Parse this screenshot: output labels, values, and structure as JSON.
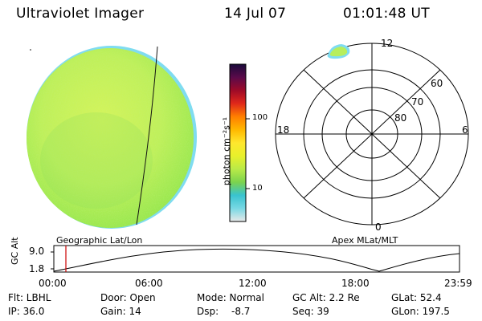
{
  "header": {
    "instrument": "Ultraviolet Imager",
    "date": "14 Jul 07",
    "time": "01:01:48 UT"
  },
  "colors": {
    "globe_green": "#9be84f",
    "globe_light": "#bff05a",
    "globe_yellow": "#d4f45a",
    "cyan_edge": "#7fdcf0",
    "oval_green": "#aef06a",
    "time_marker": "#cc0000"
  },
  "colorbar": {
    "unit_label": "photon cm⁻²s⁻¹",
    "ticks": [
      "100",
      "10"
    ],
    "stops": [
      "#e8e8e8",
      "#79d8e4",
      "#39c3cf",
      "#7cd34d",
      "#b9ea48",
      "#e8f02b",
      "#ffe72e",
      "#ffb800",
      "#ff7f00",
      "#e0281a",
      "#9e0a28",
      "#5a0a4a",
      "#1a0a3a"
    ]
  },
  "polar": {
    "mlt_labels": {
      "top": "12",
      "left": "18",
      "right": "6",
      "bottom": "0"
    },
    "lat_labels": [
      "60",
      "70",
      "80"
    ]
  },
  "strip": {
    "left_label": "Geographic Lat/Lon",
    "right_label": "Apex MLat/MLT",
    "axis_title": "GC Alt",
    "y_ticks": [
      "9.0",
      "1.8"
    ],
    "x_ticks": [
      "00:00",
      "06:00",
      "12:00",
      "18:00",
      "23:59"
    ]
  },
  "info": {
    "row1": {
      "filter": "Flt: LBHL",
      "door": "Door: Open",
      "mode": "Mode: Normal",
      "gc_alt": "GC Alt: 2.2 Re",
      "glat": "GLat: 52.4"
    },
    "row2": {
      "ip": "IP: 36.0",
      "gain": "Gain: 14",
      "dsp_label": "Dsp:",
      "dsp_value": "-8.7",
      "seq": "Seq: 39",
      "glon": "GLon: 197.5"
    }
  }
}
